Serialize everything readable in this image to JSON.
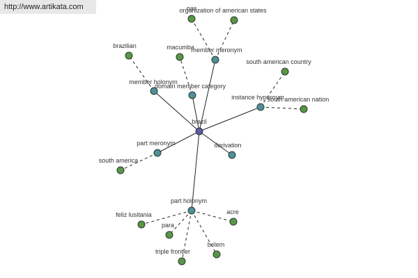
{
  "header": {
    "url": "http://www.artikata.com"
  },
  "nodes": [
    {
      "label": "brazil"
    },
    {
      "label": "member meronym"
    },
    {
      "label": "oas"
    },
    {
      "label": "organization of american states"
    },
    {
      "label": "member holonym"
    },
    {
      "label": "brazilian"
    },
    {
      "label": "domain member category"
    },
    {
      "label": "macumba"
    },
    {
      "label": "instance hypernym"
    },
    {
      "label": "south american country"
    },
    {
      "label": "south american nation"
    },
    {
      "label": "part meronym"
    },
    {
      "label": "south america"
    },
    {
      "label": "derivation"
    },
    {
      "label": "part holonym"
    },
    {
      "label": "feliz lusitania"
    },
    {
      "label": "para"
    },
    {
      "label": "triple frontier"
    },
    {
      "label": "belem"
    },
    {
      "label": "acre"
    }
  ]
}
